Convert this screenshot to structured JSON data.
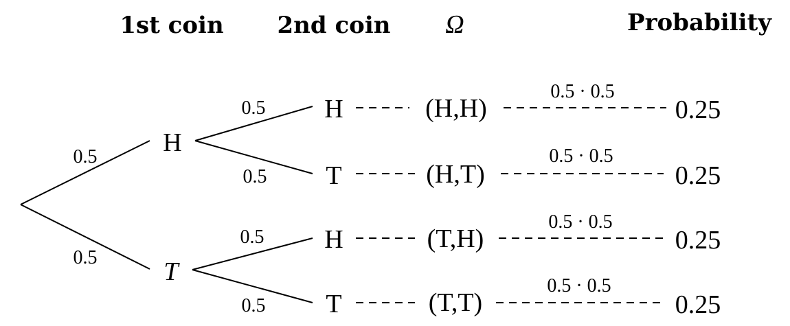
{
  "headers": {
    "first_coin": "1st coin",
    "second_coin": "2nd coin",
    "omega": "Ω",
    "probability": "Probability"
  },
  "first_level": [
    {
      "node": "H",
      "edge_label": "0.5"
    },
    {
      "node": "T",
      "edge_label": "0.5"
    }
  ],
  "rows": [
    {
      "edge_label": "0.5",
      "node": "H",
      "outcome": "(H,H)",
      "calc": "0.5 · 0.5",
      "probability": "0.25"
    },
    {
      "edge_label": "0.5",
      "node": "T",
      "outcome": "(H,T)",
      "calc": "0.5 · 0.5",
      "probability": "0.25"
    },
    {
      "edge_label": "0.5",
      "node": "H",
      "outcome": "(T,H)",
      "calc": "0.5 · 0.5",
      "probability": "0.25"
    },
    {
      "edge_label": "0.5",
      "node": "T",
      "outcome": "(T,T)",
      "calc": "0.5 · 0.5",
      "probability": "0.25"
    }
  ]
}
